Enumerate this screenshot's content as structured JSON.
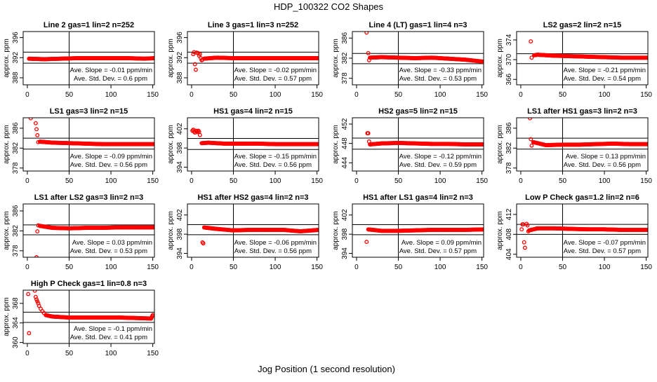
{
  "title": "HDP_100322  CO2 Shapes",
  "xlabel": "Jog Position (1 second resolution)",
  "chart_data": {
    "type": "scatter",
    "title": "HDP_100322  CO2 Shapes",
    "xlabel": "Jog Position (1 second resolution)",
    "xlim": [
      -5,
      152
    ],
    "xticks": [
      0,
      50,
      100,
      150
    ],
    "vertical_line_x": 50,
    "marker_color": "#ff0000",
    "panels": [
      {
        "title": "Line 2 gas=1 lin=2 n=252",
        "ylabel": "approx. ppm",
        "ylim": [
          386.6,
          397.2
        ],
        "yticks": [
          388,
          392,
          396
        ],
        "ref_lines": [
          393.1,
          390.9
        ],
        "slope_text": "Ave. Slope = -0.01 ppm/min",
        "sd_text": "Ave. Std. Dev. = 0.6 ppm",
        "transient": [],
        "settled": [
          [
            2,
            391.8
          ],
          [
            20,
            391.7
          ],
          [
            40,
            391.8
          ],
          [
            60,
            391.9
          ],
          [
            80,
            391.9
          ],
          [
            100,
            391.9
          ],
          [
            120,
            391.9
          ],
          [
            140,
            391.8
          ],
          [
            152,
            391.9
          ]
        ]
      },
      {
        "title": "Line 3 gas=1 lin=3 n=252",
        "ylabel": "approx. ppm",
        "ylim": [
          386.6,
          397.2
        ],
        "yticks": [
          388,
          392,
          396
        ],
        "ref_lines": [
          393.1,
          390.9
        ],
        "slope_text": "Ave. Slope = -0.02 ppm/min",
        "sd_text": "Ave. Std. Dev. = 0.57 ppm",
        "transient": [
          [
            2,
            392.7
          ],
          [
            3,
            393.1
          ],
          [
            4,
            390.7
          ],
          [
            5,
            389.6
          ],
          [
            6,
            393.0
          ],
          [
            8,
            392.9
          ],
          [
            9,
            392.4
          ],
          [
            10,
            392.7
          ],
          [
            11,
            391.9
          ],
          [
            12,
            391.5
          ],
          [
            13,
            391.6
          ]
        ],
        "settled": [
          [
            15,
            391.8
          ],
          [
            30,
            392.0
          ],
          [
            50,
            391.9
          ],
          [
            70,
            391.9
          ],
          [
            90,
            391.9
          ],
          [
            110,
            391.9
          ],
          [
            130,
            391.9
          ],
          [
            152,
            391.9
          ]
        ]
      },
      {
        "title": "Line 4 (LT) gas=1 lin=4 n=3",
        "ylabel": "approx. ppm",
        "ylim": [
          376.7,
          387.3
        ],
        "yticks": [
          378,
          382,
          386
        ],
        "ref_lines": [
          382.95,
          380.9
        ],
        "slope_text": "Ave. Slope = -0.33 ppm/min",
        "sd_text": "Ave. Std. Dev. = 0.53 ppm",
        "transient": [
          [
            12,
            387.1
          ],
          [
            14,
            383.0
          ],
          [
            15,
            381.6
          ]
        ],
        "settled": [
          [
            16,
            382.1
          ],
          [
            30,
            382.2
          ],
          [
            50,
            382.1
          ],
          [
            70,
            382.0
          ],
          [
            90,
            382.1
          ],
          [
            110,
            381.9
          ],
          [
            130,
            381.7
          ],
          [
            152,
            381.3
          ]
        ]
      },
      {
        "title": "LS2 gas=2 lin=2 n=15",
        "ylabel": "approx. ppm",
        "ylim": [
          364.9,
          375.7
        ],
        "yticks": [
          366,
          370,
          374
        ],
        "ref_lines": [
          371.2,
          369.2
        ],
        "slope_text": "Ave. Slope = -0.21 ppm/min",
        "sd_text": "Ave. Std. Dev. = 0.54 ppm",
        "transient": [
          [
            12,
            373.7
          ],
          [
            13,
            370.4
          ]
        ],
        "settled": [
          [
            16,
            370.9
          ],
          [
            20,
            371.0
          ],
          [
            40,
            370.8
          ],
          [
            60,
            370.7
          ],
          [
            80,
            370.6
          ],
          [
            100,
            370.5
          ],
          [
            120,
            370.4
          ],
          [
            152,
            370.4
          ]
        ]
      },
      {
        "title": "LS1 gas=3 lin=2 n=15",
        "ylabel": "approx. ppm",
        "ylim": [
          377.4,
          388.1
        ],
        "yticks": [
          378,
          382,
          386
        ],
        "ref_lines": [
          384.0,
          381.8
        ],
        "slope_text": "Ave. Slope = -0.09 ppm/min",
        "sd_text": "Ave. Std. Dev. = 0.56 ppm",
        "transient": [
          [
            4,
            388.0
          ],
          [
            10,
            387.0
          ],
          [
            11,
            385.8
          ],
          [
            12,
            384.6
          ],
          [
            13,
            383.2
          ]
        ],
        "settled": [
          [
            15,
            383.3
          ],
          [
            30,
            383.1
          ],
          [
            50,
            383.0
          ],
          [
            70,
            382.9
          ],
          [
            90,
            382.8
          ],
          [
            110,
            382.8
          ],
          [
            130,
            382.8
          ],
          [
            152,
            382.8
          ]
        ]
      },
      {
        "title": "HS1 gas=4 lin=2 n=15",
        "ylabel": "approx. ppm",
        "ylim": [
          393.2,
          404.3
        ],
        "yticks": [
          394,
          398,
          402
        ],
        "ref_lines": [
          400.0,
          397.7
        ],
        "slope_text": "Ave. Slope = -0.15 ppm/min",
        "sd_text": "Ave. Std. Dev. = 0.56 ppm",
        "transient": [
          [
            1,
            401.6
          ],
          [
            2,
            401.8
          ],
          [
            3,
            401.4
          ],
          [
            4,
            401.2
          ],
          [
            5,
            401.6
          ],
          [
            6,
            401.5
          ],
          [
            7,
            401.3
          ],
          [
            8,
            401.6
          ],
          [
            9,
            401.4
          ],
          [
            10,
            400.7
          ]
        ],
        "settled": [
          [
            12,
            399.0
          ],
          [
            20,
            399.1
          ],
          [
            40,
            398.9
          ],
          [
            60,
            398.9
          ],
          [
            80,
            398.9
          ],
          [
            100,
            398.8
          ],
          [
            120,
            398.8
          ],
          [
            152,
            398.8
          ]
        ]
      },
      {
        "title": "HS2 gas=5 lin=2 n=15",
        "ylabel": "approx. ppm",
        "ylim": [
          442.3,
          453.3
        ],
        "yticks": [
          444,
          448,
          452
        ],
        "ref_lines": [
          449.1,
          446.8
        ],
        "slope_text": "Ave. Slope = -0.12 ppm/min",
        "sd_text": "Ave. Std. Dev. = 0.59 ppm",
        "transient": [
          [
            13,
            450.1
          ],
          [
            14,
            450.1
          ],
          [
            15,
            448.4
          ]
        ],
        "settled": [
          [
            16,
            447.8
          ],
          [
            30,
            448.0
          ],
          [
            50,
            448.1
          ],
          [
            70,
            448.0
          ],
          [
            90,
            447.9
          ],
          [
            110,
            447.9
          ],
          [
            130,
            447.8
          ],
          [
            152,
            447.8
          ]
        ]
      },
      {
        "title": "LS1 after HS1 gas=3 lin=2 n=3",
        "ylabel": "approx. ppm",
        "ylim": [
          377.4,
          388.1
        ],
        "yticks": [
          378,
          382,
          386
        ],
        "ref_lines": [
          384.0,
          381.8
        ],
        "slope_text": "Ave. Slope = 0.13 ppm/min",
        "sd_text": "Ave. Std. Dev. = 0.56 ppm",
        "transient": [
          [
            11,
            388.0
          ],
          [
            12,
            383.8
          ],
          [
            13,
            382.5
          ]
        ],
        "settled": [
          [
            15,
            383.2
          ],
          [
            30,
            382.6
          ],
          [
            50,
            382.7
          ],
          [
            70,
            382.7
          ],
          [
            90,
            382.8
          ],
          [
            110,
            382.9
          ],
          [
            130,
            382.8
          ],
          [
            152,
            382.8
          ]
        ]
      },
      {
        "title": "LS1 after LS2 gas=3 lin=2 n=3",
        "ylabel": "approx. ppm",
        "ylim": [
          376.7,
          387.4
        ],
        "yticks": [
          378,
          382,
          386
        ],
        "ref_lines": [
          383.2,
          381.2
        ],
        "slope_text": "Ave. Slope = 0.03 ppm/min",
        "sd_text": "Ave. Std. Dev. = 0.53 ppm",
        "transient": [
          [
            11,
            376.7
          ],
          [
            12,
            381.9
          ],
          [
            13,
            383.1
          ]
        ],
        "settled": [
          [
            15,
            383.0
          ],
          [
            30,
            382.6
          ],
          [
            50,
            382.5
          ],
          [
            70,
            382.6
          ],
          [
            90,
            382.6
          ],
          [
            110,
            382.7
          ],
          [
            130,
            382.7
          ],
          [
            152,
            382.7
          ]
        ]
      },
      {
        "title": "HS1 after HS2 gas=4 lin=2 n=3",
        "ylabel": "approx. ppm",
        "ylim": [
          393.2,
          404.3
        ],
        "yticks": [
          394,
          398,
          402
        ],
        "ref_lines": [
          400.0,
          397.9
        ],
        "slope_text": "Ave. Slope = -0.06 ppm/min",
        "sd_text": "Ave. Std. Dev. = 0.56 ppm",
        "transient": [
          [
            13,
            396.3
          ],
          [
            14,
            396.1
          ]
        ],
        "settled": [
          [
            15,
            399.4
          ],
          [
            30,
            399.1
          ],
          [
            50,
            398.8
          ],
          [
            70,
            398.9
          ],
          [
            90,
            398.9
          ],
          [
            110,
            398.9
          ],
          [
            130,
            398.6
          ],
          [
            152,
            398.9
          ]
        ]
      },
      {
        "title": "HS1 after LS1 gas=4 lin=2 n=3",
        "ylabel": "approx. ppm",
        "ylim": [
          393.2,
          404.3
        ],
        "yticks": [
          394,
          398,
          402
        ],
        "ref_lines": [
          400.0,
          397.9
        ],
        "slope_text": "Ave. Slope = 0.09 ppm/min",
        "sd_text": "Ave. Std. Dev. = 0.57 ppm",
        "transient": [
          [
            12,
            396.4
          ]
        ],
        "settled": [
          [
            14,
            399.0
          ],
          [
            30,
            398.7
          ],
          [
            50,
            398.7
          ],
          [
            70,
            398.8
          ],
          [
            90,
            398.9
          ],
          [
            110,
            398.9
          ],
          [
            130,
            398.9
          ],
          [
            152,
            399.0
          ]
        ]
      },
      {
        "title": "Low P Check gas=1.2 lin=2 n=6",
        "ylabel": "approx. ppm",
        "ylim": [
          403.4,
          414.1
        ],
        "yticks": [
          404,
          408,
          412
        ],
        "ref_lines": [
          410.0,
          408.0
        ],
        "slope_text": "Ave. Slope = -0.07 ppm/min",
        "sd_text": "Ave. Std. Dev. = 0.57 ppm",
        "transient": [
          [
            1,
            409.0
          ],
          [
            2,
            410.0
          ],
          [
            3,
            410.0
          ],
          [
            4,
            406.4
          ],
          [
            5,
            405.3
          ],
          [
            7,
            410.1
          ],
          [
            8,
            409.8
          ],
          [
            9,
            408.6
          ]
        ],
        "settled": [
          [
            10,
            408.8
          ],
          [
            20,
            409.2
          ],
          [
            40,
            409.2
          ],
          [
            60,
            409.1
          ],
          [
            80,
            409.0
          ],
          [
            100,
            409.0
          ],
          [
            120,
            408.9
          ],
          [
            152,
            408.9
          ]
        ]
      },
      {
        "title": "High P Check gas=1 lin=0.8 n=3",
        "ylabel": "approx. ppm",
        "ylim": [
          359.8,
          370.7
        ],
        "yticks": [
          360,
          364,
          368
        ],
        "ref_lines": [
          366.2,
          364.1
        ],
        "slope_text": "Ave. Slope = -0.1 ppm/min",
        "sd_text": "Ave. Std. Dev. = 0.41 ppm",
        "transient": [
          [
            1,
            369.9
          ],
          [
            2,
            361.9
          ],
          [
            9,
            370.6
          ],
          [
            10,
            369.3
          ],
          [
            11,
            368.8
          ],
          [
            12,
            368.4
          ],
          [
            13,
            368.0
          ],
          [
            14,
            367.5
          ],
          [
            16,
            366.9
          ],
          [
            18,
            366.4
          ],
          [
            20,
            366.0
          ]
        ],
        "settled": [
          [
            22,
            365.6
          ],
          [
            30,
            365.3
          ],
          [
            50,
            365.1
          ],
          [
            70,
            365.1
          ],
          [
            90,
            365.1
          ],
          [
            110,
            365.1
          ],
          [
            130,
            365.0
          ],
          [
            148,
            364.9
          ],
          [
            150,
            365.6
          ]
        ]
      }
    ]
  }
}
